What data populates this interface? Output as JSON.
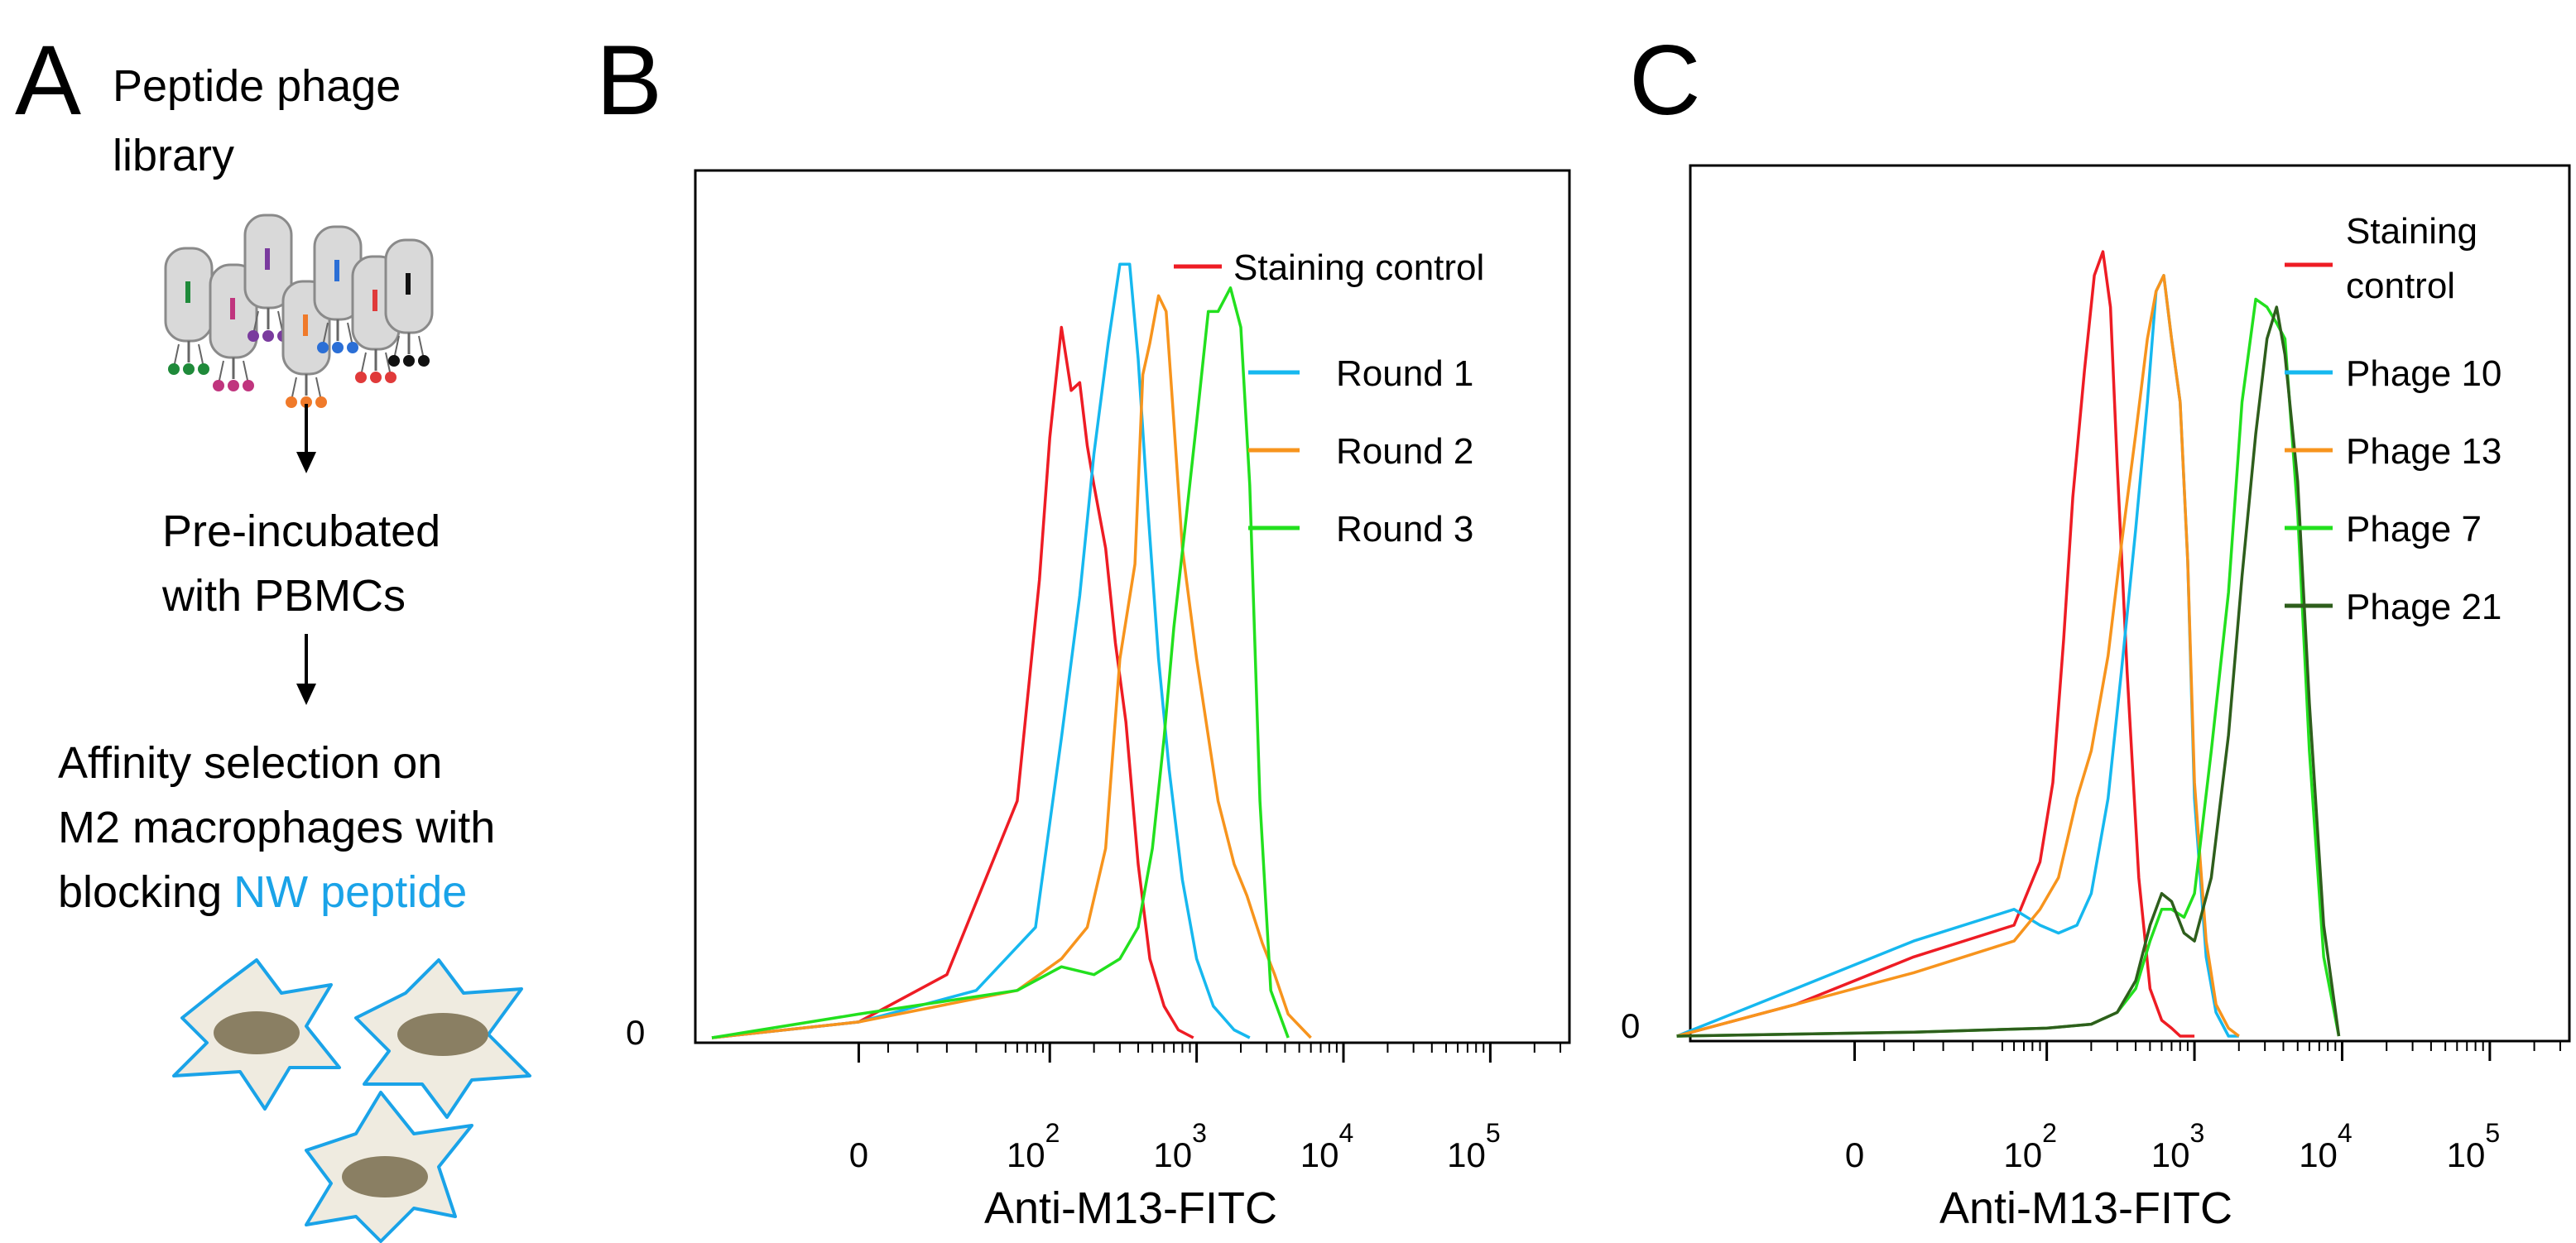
{
  "panel_a": {
    "letter": "A",
    "step1_lines": [
      "Peptide phage",
      "library"
    ],
    "step2_lines": [
      "Pre-incubated",
      "with PBMCs"
    ],
    "step3_lines": [
      "Affinity selection on",
      "M2 macrophages with",
      "blocking"
    ],
    "step3_highlight": "NW peptide",
    "highlight_color": "#1aa3e8",
    "icons": [
      "phage-library-illustration",
      "macrophage-cells-illustration"
    ]
  },
  "chart_data": [
    {
      "panel": "B",
      "type": "histogram",
      "xlabel": "Anti-M13-FITC",
      "x_scale": "biexponential-log",
      "x_ticks": [
        {
          "base": "0",
          "exp": ""
        },
        {
          "base": "10",
          "exp": "2"
        },
        {
          "base": "10",
          "exp": "3"
        },
        {
          "base": "10",
          "exp": "4"
        },
        {
          "base": "10",
          "exp": "5"
        }
      ],
      "y_tick": "0",
      "legend": [
        {
          "name": "Staining control",
          "color": "#ee1c24"
        },
        {
          "name": "Round 1",
          "color": "#16b8ef"
        },
        {
          "name": "Round 2",
          "color": "#f7941d"
        },
        {
          "name": "Round 3",
          "color": "#22e01e"
        }
      ],
      "series": [
        {
          "name": "Staining control",
          "color": "#ee1c24",
          "x": [
            -50,
            0,
            30,
            60,
            85,
            100,
            120,
            140,
            160,
            180,
            200,
            240,
            280,
            330,
            400,
            480,
            600,
            750,
            950
          ],
          "y": [
            0,
            2,
            8,
            30,
            58,
            76,
            90,
            82,
            83,
            75,
            70,
            62,
            50,
            40,
            22,
            10,
            4,
            1,
            0
          ]
        },
        {
          "name": "Round 1",
          "color": "#16b8ef",
          "x": [
            -50,
            0,
            40,
            80,
            120,
            160,
            200,
            250,
            300,
            350,
            400,
            470,
            550,
            650,
            800,
            1000,
            1300,
            1800,
            2300
          ],
          "y": [
            0,
            2,
            6,
            14,
            38,
            56,
            74,
            88,
            98,
            98,
            86,
            66,
            48,
            34,
            20,
            10,
            4,
            1,
            0
          ]
        },
        {
          "name": "Round 2",
          "color": "#f7941d",
          "x": [
            -50,
            0,
            60,
            120,
            180,
            240,
            300,
            380,
            430,
            480,
            550,
            620,
            700,
            800,
            1000,
            1400,
            1800,
            2200,
            2800,
            3400,
            4200,
            6000
          ],
          "y": [
            0,
            2,
            6,
            10,
            14,
            24,
            48,
            60,
            84,
            88,
            94,
            92,
            78,
            62,
            48,
            30,
            22,
            18,
            12,
            8,
            3,
            0
          ]
        },
        {
          "name": "Round 3",
          "color": "#22e01e",
          "x": [
            -50,
            0,
            60,
            120,
            200,
            300,
            400,
            500,
            600,
            700,
            850,
            1000,
            1200,
            1400,
            1700,
            2000,
            2300,
            2700,
            3200,
            4200
          ],
          "y": [
            0,
            3,
            6,
            9,
            8,
            10,
            14,
            24,
            38,
            52,
            66,
            78,
            92,
            92,
            95,
            90,
            70,
            30,
            6,
            0
          ]
        }
      ]
    },
    {
      "panel": "C",
      "type": "histogram",
      "xlabel": "Anti-M13-FITC",
      "x_scale": "biexponential-log",
      "x_ticks": [
        {
          "base": "0",
          "exp": ""
        },
        {
          "base": "10",
          "exp": "2"
        },
        {
          "base": "10",
          "exp": "3"
        },
        {
          "base": "10",
          "exp": "4"
        },
        {
          "base": "10",
          "exp": "5"
        }
      ],
      "y_tick": "0",
      "legend": [
        {
          "name": "Staining\ncontrol",
          "color": "#ee1c24"
        },
        {
          "name": "Phage 10",
          "color": "#16b8ef"
        },
        {
          "name": "Phage 13",
          "color": "#f7941d"
        },
        {
          "name": "Phage 7",
          "color": "#22e01e"
        },
        {
          "name": "Phage 21",
          "color": "#2e5e1c"
        }
      ],
      "series": [
        {
          "name": "Staining control",
          "color": "#ee1c24",
          "x": [
            -80,
            -20,
            20,
            60,
            90,
            110,
            130,
            150,
            180,
            210,
            240,
            270,
            300,
            350,
            420,
            500,
            600,
            700,
            800,
            1000
          ],
          "y": [
            0,
            4,
            10,
            14,
            22,
            32,
            50,
            68,
            84,
            96,
            99,
            92,
            72,
            46,
            20,
            6,
            2,
            1,
            0,
            0
          ]
        },
        {
          "name": "Phage 10",
          "color": "#16b8ef",
          "x": [
            -80,
            -20,
            20,
            60,
            90,
            120,
            160,
            200,
            260,
            320,
            400,
            480,
            550,
            620,
            700,
            800,
            900,
            1000,
            1200,
            1400,
            1700,
            2000
          ],
          "y": [
            0,
            6,
            12,
            16,
            14,
            13,
            14,
            18,
            30,
            46,
            64,
            80,
            94,
            96,
            88,
            80,
            60,
            30,
            10,
            3,
            0,
            0
          ]
        },
        {
          "name": "Phage 13",
          "color": "#f7941d",
          "x": [
            -80,
            -20,
            20,
            60,
            90,
            120,
            160,
            200,
            260,
            320,
            400,
            480,
            550,
            620,
            700,
            800,
            900,
            1000,
            1200,
            1400,
            1700,
            2000
          ],
          "y": [
            0,
            4,
            8,
            12,
            16,
            20,
            30,
            36,
            48,
            62,
            76,
            88,
            94,
            96,
            88,
            80,
            60,
            32,
            12,
            4,
            1,
            0
          ]
        },
        {
          "name": "Phage 7",
          "color": "#22e01e",
          "x": [
            -80,
            20,
            100,
            200,
            300,
            400,
            500,
            600,
            700,
            850,
            1000,
            1300,
            1700,
            2100,
            2600,
            3100,
            3600,
            4100,
            5000,
            6000,
            7500,
            9500
          ],
          "y": [
            0,
            0.5,
            1,
            1.5,
            3,
            6,
            12,
            16,
            16,
            15,
            18,
            36,
            56,
            80,
            93,
            92,
            90,
            88,
            66,
            36,
            10,
            0
          ]
        },
        {
          "name": "Phage 21",
          "color": "#2e5e1c",
          "x": [
            -80,
            20,
            100,
            200,
            300,
            400,
            500,
            600,
            700,
            850,
            1000,
            1300,
            1700,
            2100,
            2600,
            3100,
            3600,
            4100,
            5000,
            6000,
            7500,
            9500
          ],
          "y": [
            0,
            0.5,
            1,
            1.5,
            3,
            7,
            14,
            18,
            17,
            13,
            12,
            20,
            38,
            58,
            76,
            88,
            92,
            86,
            70,
            42,
            14,
            0
          ]
        }
      ]
    }
  ]
}
